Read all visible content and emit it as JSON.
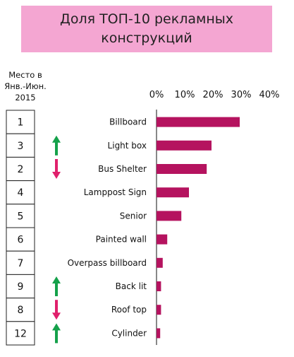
{
  "title": {
    "line1": "Доля ТОП-10 рекламных",
    "line2": "конструкций"
  },
  "rank_header": {
    "line1": "Место  в",
    "line2": "Янв.-Июн.",
    "line3": "2015"
  },
  "colors": {
    "title_bg": "#f4a6d2",
    "bar": "#b5135f",
    "arrow_up": "#15a14a",
    "arrow_down": "#e0206c"
  },
  "chart_data": {
    "type": "bar",
    "orientation": "horizontal",
    "title": "Доля ТОП-10 рекламных конструкций",
    "categories": [
      "Billboard",
      "Light box",
      "Bus Shelter",
      "Lamppost Sign",
      "Senior",
      "Painted wall",
      "Overpass billboard",
      "Back lit",
      "Roof top",
      "Cylinder"
    ],
    "values": [
      29.5,
      19.5,
      17.8,
      11.5,
      8.8,
      3.8,
      2.2,
      1.6,
      1.6,
      1.3
    ],
    "ranks": [
      "1",
      "3",
      "2",
      "4",
      "5",
      "6",
      "7",
      "9",
      "8",
      "12"
    ],
    "trend": [
      "none",
      "up",
      "down",
      "none",
      "none",
      "none",
      "none",
      "up",
      "down",
      "up"
    ],
    "xlim": [
      0,
      40
    ],
    "xticks": [
      "0%",
      "10%",
      "20%",
      "30%",
      "40%"
    ],
    "xtick_values": [
      0,
      10,
      20,
      30,
      40
    ],
    "unit": "%",
    "grid": false,
    "legend": "none"
  }
}
